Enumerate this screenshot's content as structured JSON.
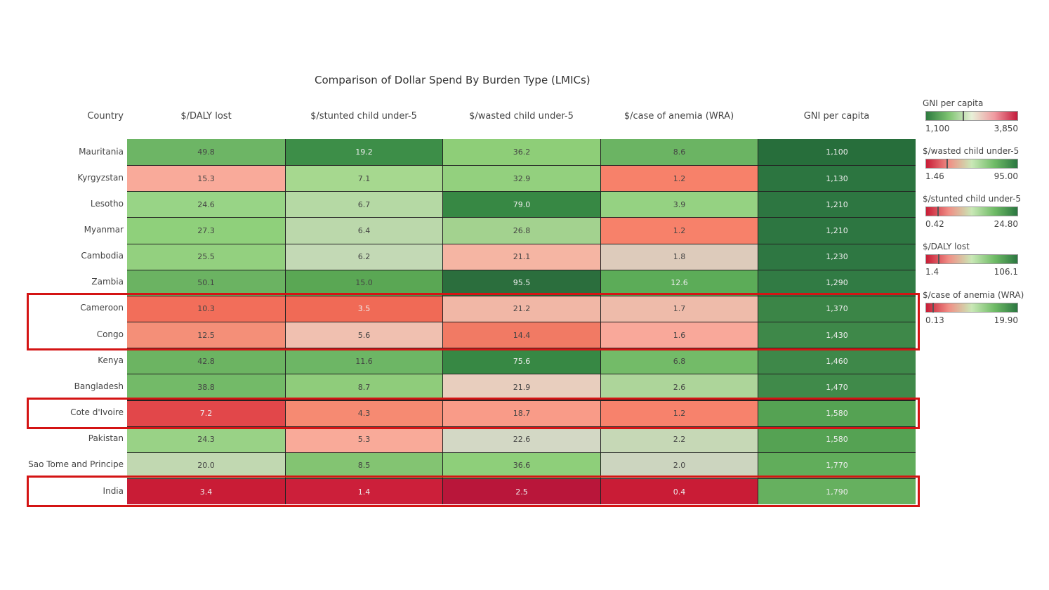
{
  "chart_data": {
    "type": "heatmap",
    "title": "Comparison of Dollar Spend By Burden Type (LMICs)",
    "row_header": "Country",
    "columns": [
      "$/DALY lost",
      "$/stunted child under-5",
      "$/wasted child under-5",
      "$/case of anemia (WRA)",
      "GNI per capita"
    ],
    "rows": [
      {
        "country": "Mauritania",
        "values": [
          "49.8",
          "19.2",
          "36.2",
          "8.6",
          "1,100"
        ]
      },
      {
        "country": "Kyrgyzstan",
        "values": [
          "15.3",
          "7.1",
          "32.9",
          "1.2",
          "1,130"
        ]
      },
      {
        "country": "Lesotho",
        "values": [
          "24.6",
          "6.7",
          "79.0",
          "3.9",
          "1,210"
        ]
      },
      {
        "country": "Myanmar",
        "values": [
          "27.3",
          "6.4",
          "26.8",
          "1.2",
          "1,210"
        ]
      },
      {
        "country": "Cambodia",
        "values": [
          "25.5",
          "6.2",
          "21.1",
          "1.8",
          "1,230"
        ]
      },
      {
        "country": "Zambia",
        "values": [
          "50.1",
          "15.0",
          "95.5",
          "12.6",
          "1,290"
        ]
      },
      {
        "country": "Cameroon",
        "values": [
          "10.3",
          "3.5",
          "21.2",
          "1.7",
          "1,370"
        ]
      },
      {
        "country": "Congo",
        "values": [
          "12.5",
          "5.6",
          "14.4",
          "1.6",
          "1,430"
        ]
      },
      {
        "country": "Kenya",
        "values": [
          "42.8",
          "11.6",
          "75.6",
          "6.8",
          "1,460"
        ]
      },
      {
        "country": "Bangladesh",
        "values": [
          "38.8",
          "8.7",
          "21.9",
          "2.6",
          "1,470"
        ]
      },
      {
        "country": "Cote d'Ivoire",
        "values": [
          "7.2",
          "4.3",
          "18.7",
          "1.2",
          "1,580"
        ]
      },
      {
        "country": "Pakistan",
        "values": [
          "24.3",
          "5.3",
          "22.6",
          "2.2",
          "1,580"
        ]
      },
      {
        "country": "Sao Tome and Principe",
        "values": [
          "20.0",
          "8.5",
          "36.6",
          "2.0",
          "1,770"
        ]
      },
      {
        "country": "India",
        "values": [
          "3.4",
          "1.4",
          "2.5",
          "0.4",
          "1,790"
        ]
      }
    ],
    "colors": [
      [
        "#6db565",
        "#3d8e48",
        "#8ece78",
        "#6bb463",
        "#276e3b"
      ],
      [
        "#f9aa9a",
        "#a6d88f",
        "#93d07e",
        "#f7816a",
        "#2c7540"
      ],
      [
        "#98d486",
        "#b5d9a4",
        "#378844",
        "#95d282",
        "#2d7641"
      ],
      [
        "#8fd07b",
        "#bbd8ab",
        "#a3d28f",
        "#f7816a",
        "#2d7641"
      ],
      [
        "#93d07f",
        "#c3d9b5",
        "#f5b5a3",
        "#ddcbbb",
        "#2e7742"
      ],
      [
        "#6bb362",
        "#5aa754",
        "#2b6e3d",
        "#5cac58",
        "#317b44"
      ],
      [
        "#f26e5a",
        "#f06a56",
        "#f1b7a6",
        "#eebbaa",
        "#3b8547"
      ],
      [
        "#f48f78",
        "#f0c0b0",
        "#f17a64",
        "#f9a89a",
        "#3e8849"
      ],
      [
        "#6cb462",
        "#6db665",
        "#378844",
        "#73bb68",
        "#3e8849"
      ],
      [
        "#73ba68",
        "#8fcc7b",
        "#e8cebe",
        "#add59a",
        "#408a4a"
      ],
      [
        "#e2474a",
        "#f68a72",
        "#f99b88",
        "#f7826c",
        "#55a253"
      ],
      [
        "#99d286",
        "#f9aa99",
        "#d3d8c5",
        "#c6d8b6",
        "#55a253"
      ],
      [
        "#c1d8b1",
        "#83c472",
        "#8ecf7a",
        "#ccd5bf",
        "#61ad5b"
      ],
      [
        "#c91c36",
        "#cc1f3a",
        "#b9163a",
        "#c91c36",
        "#66b05f"
      ]
    ],
    "light_text": [
      [
        false,
        true,
        false,
        false,
        true
      ],
      [
        false,
        false,
        false,
        false,
        true
      ],
      [
        false,
        false,
        true,
        false,
        true
      ],
      [
        false,
        false,
        false,
        false,
        true
      ],
      [
        false,
        false,
        false,
        false,
        true
      ],
      [
        false,
        false,
        true,
        true,
        true
      ],
      [
        false,
        true,
        false,
        false,
        true
      ],
      [
        false,
        false,
        false,
        false,
        true
      ],
      [
        false,
        false,
        true,
        false,
        true
      ],
      [
        false,
        false,
        false,
        false,
        true
      ],
      [
        true,
        false,
        false,
        false,
        true
      ],
      [
        false,
        false,
        false,
        false,
        true
      ],
      [
        false,
        false,
        false,
        false,
        true
      ],
      [
        true,
        true,
        true,
        true,
        true
      ]
    ],
    "highlight_groups": [
      [
        "Cameroon",
        "Congo"
      ],
      [
        "Cote d'Ivoire"
      ],
      [
        "India"
      ]
    ],
    "legends": [
      {
        "title": "GNI per capita",
        "min": "1,100",
        "max": "3,850",
        "gradient": [
          "#2d7a3f",
          "#7fc472",
          "#e8f0d8",
          "#f09aa0",
          "#c41a3c"
        ],
        "marker": 0.4
      },
      {
        "title": "$/wasted child under-5",
        "min": "1.46",
        "max": "95.00",
        "gradient": [
          "#c81c36",
          "#f08f86",
          "#c9e8b6",
          "#6fbb66",
          "#2b7740"
        ],
        "marker": 0.22
      },
      {
        "title": "$/stunted child under-5",
        "min": "0.42",
        "max": "24.80",
        "gradient": [
          "#c81c36",
          "#f08f86",
          "#c9e8b6",
          "#6fbb66",
          "#2b7740"
        ],
        "marker": 0.12
      },
      {
        "title": "$/DALY lost",
        "min": "1.4",
        "max": "106.1",
        "gradient": [
          "#c81c36",
          "#f08f86",
          "#c9e8b6",
          "#6fbb66",
          "#2b7740"
        ],
        "marker": 0.13
      },
      {
        "title": "$/case of anemia (WRA)",
        "min": "0.13",
        "max": "19.90",
        "gradient": [
          "#c81c36",
          "#f08f86",
          "#c9e8b6",
          "#6fbb66",
          "#2b7740"
        ],
        "marker": 0.07
      }
    ]
  }
}
